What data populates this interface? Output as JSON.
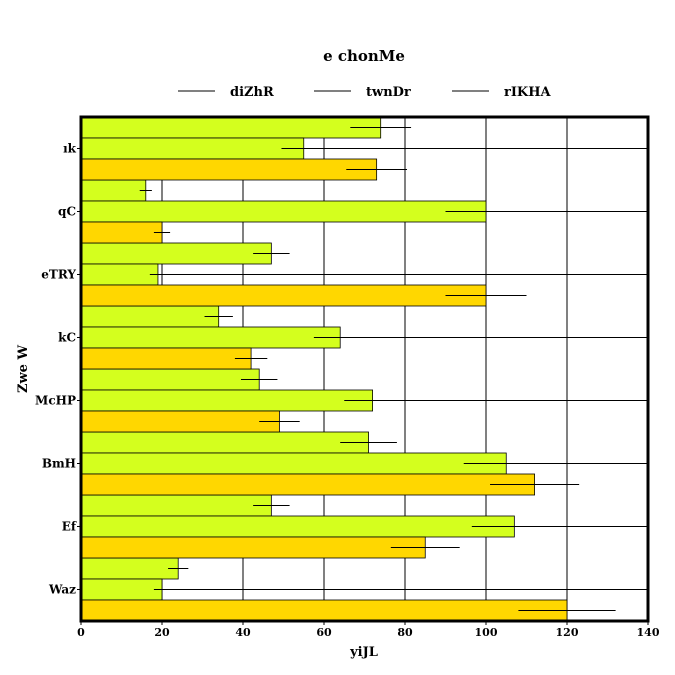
{
  "chart_data": {
    "type": "bar",
    "orientation": "horizontal",
    "title": "e chonMe",
    "xlabel": "yiJL",
    "ylabel": "Zwe W",
    "xlim": [
      0,
      140
    ],
    "xticks": [
      0,
      20,
      40,
      60,
      80,
      100,
      120,
      140
    ],
    "grid": true,
    "legend_position": "top",
    "categories": [
      "Waz",
      "Ef",
      "BmH",
      "McHP",
      "kC",
      "eTRY",
      "qC",
      "ık"
    ],
    "series": [
      {
        "name": "diZhR",
        "color": "#d4ff1e",
        "values": [
          24,
          47,
          71,
          44,
          34,
          47,
          16,
          74
        ],
        "errors": [
          2.5,
          4.5,
          7,
          4.5,
          3.5,
          4.5,
          1.5,
          7.5
        ]
      },
      {
        "name": "twnDr",
        "color": "#d4ff1e",
        "values": [
          20,
          107,
          105,
          72,
          64,
          19,
          100,
          55
        ],
        "errors": [
          2,
          10.5,
          10.5,
          7,
          6.5,
          2,
          10,
          5.5
        ]
      },
      {
        "name": "rIKHA",
        "color": "#ffd700",
        "values": [
          120,
          85,
          112,
          49,
          42,
          100,
          20,
          73
        ],
        "errors": [
          12,
          8.5,
          11,
          5,
          4,
          10,
          2,
          7.5
        ]
      }
    ]
  }
}
